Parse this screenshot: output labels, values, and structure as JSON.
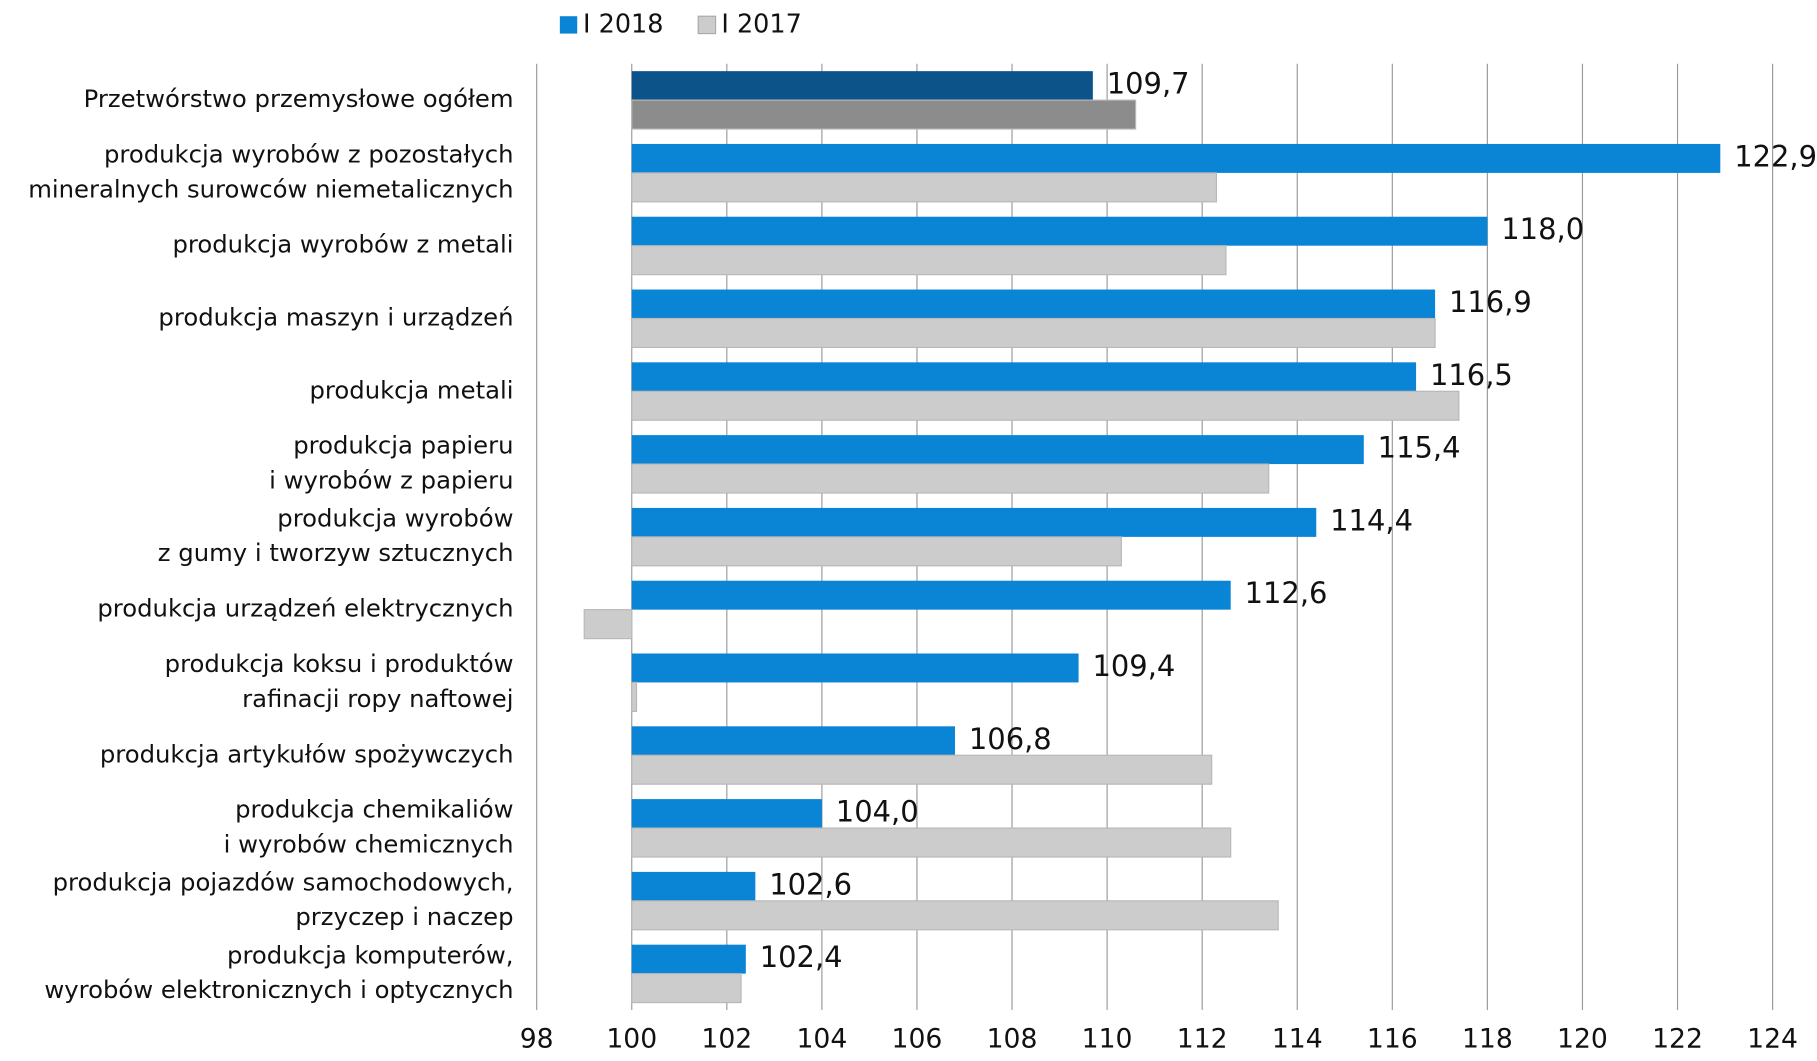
{
  "chart_data": {
    "type": "hbar",
    "categories": [
      [
        "Przetwórstwo przemysłowe ogółem"
      ],
      [
        "produkcja wyrobów z pozostałych",
        "mineralnych surowców niemetalicznych"
      ],
      [
        "produkcja wyrobów z metali"
      ],
      [
        "produkcja maszyn i urządzeń"
      ],
      [
        "produkcja metali"
      ],
      [
        "produkcja papieru",
        "i wyrobów z papieru"
      ],
      [
        "produkcja wyrobów",
        "z gumy i tworzyw sztucznych"
      ],
      [
        "produkcja urządzeń elektrycznych"
      ],
      [
        "produkcja koksu i produktów",
        "rafinacji ropy naftowej"
      ],
      [
        "produkcja artykułów spożywczych"
      ],
      [
        "produkcja chemikaliów",
        "i wyrobów chemicznych"
      ],
      [
        "produkcja pojazdów samochodowych,",
        "przyczep i naczep"
      ],
      [
        "produkcja komputerów,",
        "wyrobów elektronicznych i optycznych"
      ]
    ],
    "series": [
      {
        "name": "I 2018",
        "color": "#0a85d6",
        "highlight_color": "#0b5388",
        "values": [
          109.7,
          122.9,
          118.0,
          116.9,
          116.5,
          115.4,
          114.4,
          112.6,
          109.4,
          106.8,
          104.0,
          102.6,
          102.4
        ],
        "value_labels": [
          "109,7",
          "122,9",
          "118,0",
          "116,9",
          "116,5",
          "115,4",
          "114,4",
          "112,6",
          "109,4",
          "106,8",
          "104,0",
          "102,6",
          "102,4"
        ]
      },
      {
        "name": "I 2017",
        "color": "#cccccc",
        "highlight_color": "#8c8c8c",
        "values": [
          110.6,
          112.3,
          112.5,
          116.9,
          117.4,
          113.4,
          110.3,
          99.0,
          100.1,
          112.2,
          112.6,
          113.6,
          102.3
        ]
      }
    ],
    "highlight_index": 0,
    "base": 100,
    "xlim": [
      98,
      124
    ],
    "xticks": [
      98,
      100,
      102,
      104,
      106,
      108,
      110,
      112,
      114,
      116,
      118,
      120,
      122,
      124
    ],
    "grid": true,
    "legend": "top"
  }
}
